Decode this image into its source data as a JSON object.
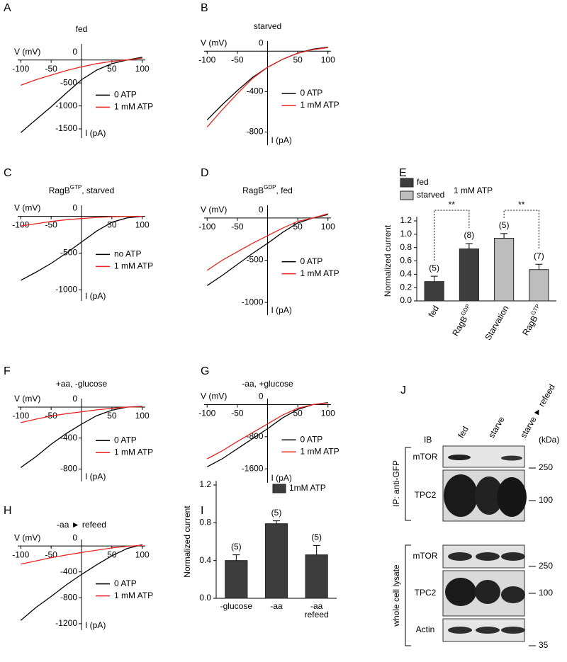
{
  "chart_data": [
    {
      "panel": "A",
      "type": "iv",
      "title": "fed",
      "xlabel": "V (mV)",
      "ylabel": "I (pA)",
      "xlim": [
        -105,
        105
      ],
      "xticks": [
        -100,
        -50,
        0,
        50,
        100
      ],
      "ylim": [
        -1700,
        350
      ],
      "yticks": [
        -500,
        -1000,
        -1500
      ],
      "x": [
        -100,
        -75,
        -50,
        -25,
        0,
        25,
        50,
        75,
        100
      ],
      "series": [
        {
          "name": "0 ATP",
          "color": "#000000",
          "values": [
            -1580,
            -1300,
            -1020,
            -720,
            -430,
            -220,
            -80,
            0,
            60
          ]
        },
        {
          "name": "1 mM ATP",
          "color": "#e8251f",
          "values": [
            -550,
            -430,
            -330,
            -230,
            -150,
            -80,
            -30,
            0,
            40
          ]
        }
      ]
    },
    {
      "panel": "B",
      "type": "iv",
      "title": "starved",
      "xlabel": "V (mV)",
      "ylabel": "I (pA)",
      "xlim": [
        -105,
        105
      ],
      "xticks": [
        -100,
        -50,
        0,
        50,
        100
      ],
      "ylim": [
        -930,
        100
      ],
      "yticks": [
        -400,
        -800
      ],
      "x": [
        -100,
        -75,
        -50,
        -25,
        0,
        25,
        50,
        75,
        100
      ],
      "series": [
        {
          "name": "0 ATP",
          "color": "#000000",
          "values": [
            -680,
            -530,
            -390,
            -260,
            -160,
            -80,
            -20,
            20,
            40
          ]
        },
        {
          "name": "1 mM ATP",
          "color": "#e8251f",
          "values": [
            -750,
            -580,
            -420,
            -270,
            -160,
            -80,
            -20,
            15,
            35
          ]
        }
      ]
    },
    {
      "panel": "C",
      "type": "iv",
      "title": [
        "RagB",
        "GTP",
        ", starved"
      ],
      "xlabel": "V (mV)",
      "ylabel": "I (pA)",
      "xlim": [
        -105,
        105
      ],
      "xticks": [
        -100,
        -50,
        0,
        50,
        100
      ],
      "ylim": [
        -1150,
        150
      ],
      "yticks": [
        -500,
        -1000
      ],
      "x": [
        -100,
        -75,
        -50,
        -25,
        0,
        25,
        50,
        75,
        100
      ],
      "series": [
        {
          "name": "no ATP",
          "color": "#000000",
          "values": [
            -870,
            -760,
            -640,
            -500,
            -350,
            -200,
            -80,
            -20,
            0
          ]
        },
        {
          "name": "1 mM ATP",
          "color": "#e8251f",
          "values": [
            -130,
            -100,
            -70,
            -45,
            -30,
            -15,
            -5,
            0,
            0
          ]
        }
      ]
    },
    {
      "panel": "D",
      "type": "iv",
      "title": [
        "RagB",
        "GDP",
        ", fed"
      ],
      "xlabel": "V (mV)",
      "ylabel": "I (pA)",
      "xlim": [
        -105,
        105
      ],
      "xticks": [
        -100,
        -50,
        0,
        50,
        100
      ],
      "ylim": [
        -1150,
        150
      ],
      "yticks": [
        -500,
        -1000
      ],
      "x": [
        -100,
        -75,
        -50,
        -25,
        0,
        25,
        50,
        75,
        100
      ],
      "series": [
        {
          "name": "0 ATP",
          "color": "#000000",
          "values": [
            -800,
            -680,
            -550,
            -420,
            -300,
            -170,
            -60,
            0,
            40
          ]
        },
        {
          "name": "1 mM ATP",
          "color": "#e8251f",
          "values": [
            -620,
            -500,
            -400,
            -300,
            -210,
            -120,
            -40,
            0,
            50
          ]
        }
      ]
    },
    {
      "panel": "E",
      "type": "bar",
      "ylabel": "Normalized current",
      "annotation": "1 mM ATP",
      "categories": [
        "fed",
        [
          "RagB",
          "GDP"
        ],
        "Starvation",
        [
          "RagB",
          "GTP"
        ]
      ],
      "values": [
        0.29,
        0.78,
        0.94,
        0.47
      ],
      "errors": [
        0.08,
        0.08,
        0.07,
        0.08
      ],
      "n_labels": [
        "(5)",
        "(8)",
        "(5)",
        "(7)"
      ],
      "colors": [
        "#3d3d3d",
        "#3d3d3d",
        "#bdbdbd",
        "#bdbdbd"
      ],
      "legend": [
        {
          "name": "fed",
          "color": "#3d3d3d"
        },
        {
          "name": "starved",
          "color": "#bdbdbd"
        }
      ],
      "significance": [
        "**",
        "**"
      ],
      "ylim": [
        0,
        1.2
      ],
      "yticks": [
        {
          "value": 0,
          "label": "0.0"
        },
        0.2,
        0.4,
        0.6,
        0.8,
        {
          "value": 1,
          "label": "1.0"
        },
        1.2
      ]
    },
    {
      "panel": "F",
      "type": "iv",
      "title": "+aa, -glucose",
      "xlabel": "V (mV)",
      "ylabel": "I (pA)",
      "xlim": [
        -105,
        105
      ],
      "xticks": [
        -100,
        -50,
        0,
        50,
        100
      ],
      "ylim": [
        -960,
        110
      ],
      "yticks": [
        -400,
        -800
      ],
      "x": [
        -100,
        -75,
        -50,
        -25,
        0,
        25,
        50,
        75,
        100
      ],
      "series": [
        {
          "name": "0 ATP",
          "color": "#000000",
          "values": [
            -780,
            -640,
            -480,
            -340,
            -220,
            -110,
            -40,
            0,
            10
          ]
        },
        {
          "name": "1 mM ATP",
          "color": "#e8251f",
          "values": [
            -200,
            -155,
            -115,
            -85,
            -60,
            -35,
            -15,
            0,
            5
          ]
        }
      ]
    },
    {
      "panel": "G",
      "type": "iv",
      "title": "-aa, +glucose",
      "xlabel": "V (mV)",
      "ylabel": "I (pA)",
      "xlim": [
        -105,
        105
      ],
      "xticks": [
        -100,
        -50,
        0,
        50,
        100
      ],
      "ylim": [
        -1950,
        150
      ],
      "yticks": [
        -800,
        -1600
      ],
      "x": [
        -100,
        -75,
        -50,
        -25,
        0,
        25,
        50,
        75,
        100
      ],
      "series": [
        {
          "name": "0 ATP",
          "color": "#000000",
          "values": [
            -1550,
            -1350,
            -1100,
            -850,
            -600,
            -330,
            -120,
            0,
            50
          ]
        },
        {
          "name": "1 mM ATP",
          "color": "#e8251f",
          "values": [
            -1350,
            -1150,
            -920,
            -700,
            -480,
            -260,
            -90,
            0,
            40
          ]
        }
      ]
    },
    {
      "panel": "H",
      "type": "iv",
      "title": "-aa ► refeed",
      "xlabel": "V (mV)",
      "ylabel": "I (pA)",
      "xlim": [
        -105,
        105
      ],
      "xticks": [
        -100,
        -50,
        0,
        50,
        100
      ],
      "ylim": [
        -1300,
        100
      ],
      "yticks": [
        -400,
        -800,
        -1200
      ],
      "x": [
        -100,
        -75,
        -50,
        -25,
        0,
        25,
        50,
        75,
        100
      ],
      "series": [
        {
          "name": "0 ATP",
          "color": "#000000",
          "values": [
            -1150,
            -950,
            -780,
            -600,
            -440,
            -290,
            -150,
            -40,
            20
          ]
        },
        {
          "name": "1 mM ATP",
          "color": "#e8251f",
          "values": [
            -280,
            -230,
            -180,
            -140,
            -100,
            -65,
            -30,
            -5,
            10
          ]
        }
      ]
    },
    {
      "panel": "I",
      "type": "bar",
      "ylabel": "Normalized current",
      "categories": [
        "-glucose",
        "-aa",
        [
          "-aa",
          "refeed"
        ]
      ],
      "values": [
        0.4,
        0.79,
        0.46
      ],
      "errors": [
        0.06,
        0.03,
        0.1
      ],
      "n_labels": [
        "(5)",
        "(5)",
        "(5)"
      ],
      "colors": [
        "#3d3d3d",
        "#3d3d3d",
        "#3d3d3d"
      ],
      "legend": [
        {
          "name": "1mM ATP",
          "color": "#3d3d3d"
        }
      ],
      "ylim": [
        0,
        1.2
      ],
      "yticks": [
        {
          "value": 0,
          "label": "0.0"
        },
        0.4,
        0.8,
        1.2
      ]
    }
  ],
  "blot": {
    "panel": "J",
    "ib": "IB",
    "lanes": [
      "fed",
      "starve",
      "starve ► refeed"
    ],
    "unit": "(kDa)",
    "groups": [
      {
        "label": "IP: anti-GFP",
        "rows": [
          "mTOR",
          "TPC2"
        ],
        "markers": [
          "250",
          "100"
        ]
      },
      {
        "label": "whole cell lysate",
        "rows": [
          "mTOR",
          "TPC2",
          "Actin"
        ],
        "markers": [
          "250",
          "100",
          "35"
        ]
      }
    ]
  }
}
